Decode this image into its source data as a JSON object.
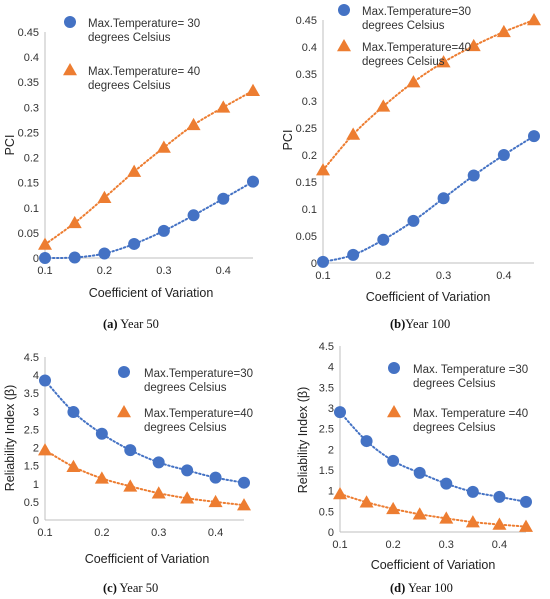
{
  "colors": {
    "blue": "#4472c4",
    "orange": "#ed7d31"
  },
  "chart_data": [
    {
      "type": "scatter",
      "xlabel": "Coefficient of Variation",
      "ylabel": "PCI",
      "xlim": [
        0.1,
        0.45
      ],
      "ylim": [
        0,
        0.45
      ],
      "xticks": [
        "0.1",
        "0.2",
        "0.3",
        "0.4"
      ],
      "xtick_values": [
        0.1,
        0.2,
        0.3,
        0.4
      ],
      "yticks": [
        "0",
        "0.05",
        "0.1",
        "0.15",
        "0.2",
        "0.25",
        "0.3",
        "0.35",
        "0.4",
        "0.45"
      ],
      "ytick_values": [
        0,
        0.05,
        0.1,
        0.15,
        0.2,
        0.25,
        0.3,
        0.35,
        0.4,
        0.45
      ],
      "legend_position": "top-left",
      "caption_label": "(a)",
      "caption_text": " Year 50",
      "series": [
        {
          "name": "Max.Temperature= 30 degrees Celsius",
          "legend_lines": [
            "Max.Temperature= 30",
            "degrees Celsius"
          ],
          "marker": "circle",
          "color": "#4472c4",
          "x": [
            0.1,
            0.15,
            0.2,
            0.25,
            0.3,
            0.35,
            0.4,
            0.45
          ],
          "y": [
            0.0,
            0.001,
            0.009,
            0.028,
            0.054,
            0.085,
            0.118,
            0.152
          ]
        },
        {
          "name": "Max.Temperature= 40 degrees Celsius",
          "legend_lines": [
            "Max.Temperature= 40",
            "degrees Celsius"
          ],
          "marker": "triangle",
          "color": "#ed7d31",
          "x": [
            0.1,
            0.15,
            0.2,
            0.25,
            0.3,
            0.35,
            0.4,
            0.45
          ],
          "y": [
            0.027,
            0.07,
            0.12,
            0.172,
            0.22,
            0.265,
            0.3,
            0.333
          ]
        }
      ]
    },
    {
      "type": "scatter",
      "xlabel": "Coefficient of Variation",
      "ylabel": "PCI",
      "xlim": [
        0.1,
        0.45
      ],
      "ylim": [
        0,
        0.45
      ],
      "xticks": [
        "0.1",
        "0.2",
        "0.3",
        "0.4"
      ],
      "xtick_values": [
        0.1,
        0.2,
        0.3,
        0.4
      ],
      "yticks": [
        "0",
        "0.05",
        "0.1",
        "0.15",
        "0.2",
        "0.25",
        "0.3",
        "0.35",
        "0.4",
        "0.45"
      ],
      "ytick_values": [
        0,
        0.05,
        0.1,
        0.15,
        0.2,
        0.25,
        0.3,
        0.35,
        0.4,
        0.45
      ],
      "legend_position": "top-left",
      "caption_label": "(b)",
      "caption_text": "Year 100",
      "series": [
        {
          "name": "Max.Temperature=30 degrees Celsius",
          "legend_lines": [
            "Max.Temperature=30",
            "degrees Celsius"
          ],
          "marker": "circle",
          "color": "#4472c4",
          "x": [
            0.1,
            0.15,
            0.2,
            0.25,
            0.3,
            0.35,
            0.4,
            0.45
          ],
          "y": [
            0.002,
            0.015,
            0.043,
            0.078,
            0.12,
            0.162,
            0.2,
            0.235
          ]
        },
        {
          "name": "Max.Temperature=40 degrees Celsius",
          "legend_lines": [
            "Max.Temperature=40",
            "degrees Celsius"
          ],
          "marker": "triangle",
          "color": "#ed7d31",
          "x": [
            0.1,
            0.15,
            0.2,
            0.25,
            0.3,
            0.35,
            0.4,
            0.45
          ],
          "y": [
            0.172,
            0.238,
            0.29,
            0.335,
            0.372,
            0.402,
            0.428,
            0.45
          ]
        }
      ]
    },
    {
      "type": "scatter",
      "xlabel": "Coefficient of Variation",
      "ylabel": "Reliability Index (β)",
      "xlim": [
        0.1,
        0.45
      ],
      "ylim": [
        0,
        4.5
      ],
      "xticks": [
        "0.1",
        "0.2",
        "0.3",
        "0.4"
      ],
      "xtick_values": [
        0.1,
        0.2,
        0.3,
        0.4
      ],
      "yticks": [
        "0",
        "0.5",
        "1",
        "1.5",
        "2",
        "2.5",
        "3",
        "3.5",
        "4",
        "4.5"
      ],
      "ytick_values": [
        0,
        0.5,
        1,
        1.5,
        2,
        2.5,
        3,
        3.5,
        4,
        4.5
      ],
      "legend_position": "top-right",
      "caption_label": "(c)",
      "caption_text": " Year 50",
      "series": [
        {
          "name": "Max.Temperature=30 degrees Celsius",
          "legend_lines": [
            "Max.Temperature=30",
            "degrees Celsius"
          ],
          "marker": "circle",
          "color": "#4472c4",
          "x": [
            0.1,
            0.15,
            0.2,
            0.25,
            0.3,
            0.35,
            0.4,
            0.45
          ],
          "y": [
            3.85,
            2.98,
            2.38,
            1.93,
            1.59,
            1.37,
            1.17,
            1.03
          ]
        },
        {
          "name": "Max.Temperature=40 degrees Celsius",
          "legend_lines": [
            "Max.Temperature=40",
            "degrees Celsius"
          ],
          "marker": "triangle",
          "color": "#ed7d31",
          "x": [
            0.1,
            0.15,
            0.2,
            0.25,
            0.3,
            0.35,
            0.4,
            0.45
          ],
          "y": [
            1.93,
            1.47,
            1.15,
            0.93,
            0.74,
            0.6,
            0.5,
            0.41
          ]
        }
      ]
    },
    {
      "type": "scatter",
      "xlabel": "Coefficient of Variation",
      "ylabel": "Reliability Index (β)",
      "xlim": [
        0.1,
        0.45
      ],
      "ylim": [
        0,
        4.5
      ],
      "xticks": [
        "0.1",
        "0.2",
        "0.3",
        "0.4"
      ],
      "xtick_values": [
        0.1,
        0.2,
        0.3,
        0.4
      ],
      "yticks": [
        "0",
        "0.5",
        "1",
        "1.5",
        "2",
        "2.5",
        "3",
        "3.5",
        "4",
        "4.5"
      ],
      "ytick_values": [
        0,
        0.5,
        1,
        1.5,
        2,
        2.5,
        3,
        3.5,
        4,
        4.5
      ],
      "legend_position": "top-right",
      "caption_label": "(d)",
      "caption_text": " Year 100",
      "series": [
        {
          "name": "Max. Temperature =30 degrees Celsius",
          "legend_lines": [
            "Max. Temperature =30",
            "degrees Celsius"
          ],
          "marker": "circle",
          "color": "#4472c4",
          "x": [
            0.1,
            0.15,
            0.2,
            0.25,
            0.3,
            0.35,
            0.4,
            0.45
          ],
          "y": [
            2.9,
            2.2,
            1.72,
            1.43,
            1.17,
            0.97,
            0.85,
            0.73
          ]
        },
        {
          "name": "Max. Temperature =40 degrees Celsius",
          "legend_lines": [
            "Max. Temperature =40",
            "degrees Celsius"
          ],
          "marker": "triangle",
          "color": "#ed7d31",
          "x": [
            0.1,
            0.15,
            0.2,
            0.25,
            0.3,
            0.35,
            0.4,
            0.45
          ],
          "y": [
            0.92,
            0.72,
            0.56,
            0.43,
            0.33,
            0.24,
            0.18,
            0.13
          ]
        }
      ]
    }
  ]
}
